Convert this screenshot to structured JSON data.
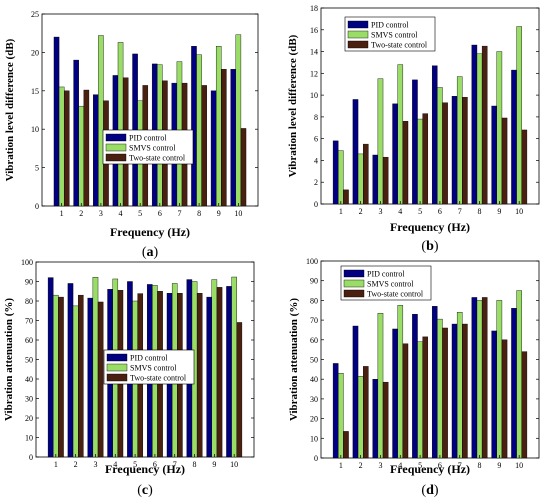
{
  "colors": {
    "pid": "#000080",
    "smvs": "#99dd66",
    "two_state": "#4a2010"
  },
  "chart_data": [
    {
      "type": "bar",
      "panel_label": "(a)",
      "title": "",
      "xlabel": "Frequency (Hz)",
      "ylabel": "Vibration level difference (dB)",
      "ylim": [
        0,
        25
      ],
      "yticks": [
        0,
        5,
        10,
        15,
        20,
        25
      ],
      "categories": [
        "1",
        "2",
        "3",
        "4",
        "5",
        "6",
        "7",
        "8",
        "9",
        "10"
      ],
      "legend_position": "center-left",
      "series": [
        {
          "name": "PID control",
          "values": [
            22,
            19,
            14.5,
            17,
            19.8,
            18.5,
            16,
            20.8,
            15,
            17.8
          ]
        },
        {
          "name": "SMVS control",
          "values": [
            15.5,
            13,
            22.2,
            21.3,
            13.7,
            18.4,
            18.8,
            19.7,
            20.8,
            22.3
          ]
        },
        {
          "name": "Two-state control",
          "values": [
            15,
            15.1,
            13.7,
            16.7,
            15.7,
            16.3,
            16,
            15.7,
            17.8,
            10.1
          ]
        }
      ]
    },
    {
      "type": "bar",
      "panel_label": "(b)",
      "title": "",
      "xlabel": "Frequency (Hz)",
      "ylabel": "Vibration level difference (dB)",
      "ylim": [
        0,
        18
      ],
      "yticks": [
        0,
        2,
        4,
        6,
        8,
        10,
        12,
        14,
        16,
        18
      ],
      "categories": [
        "1",
        "2",
        "3",
        "4",
        "5",
        "6",
        "7",
        "8",
        "9",
        "10"
      ],
      "legend_position": "top-left",
      "series": [
        {
          "name": "PID control",
          "values": [
            5.8,
            9.6,
            4.5,
            9.2,
            11.4,
            12.7,
            9.9,
            14.6,
            9,
            12.3
          ]
        },
        {
          "name": "SMVS control",
          "values": [
            4.9,
            4.6,
            11.5,
            12.8,
            7.8,
            10.7,
            11.7,
            13.8,
            14,
            16.3
          ]
        },
        {
          "name": "Two-state control",
          "values": [
            1.3,
            5.5,
            4.3,
            7.6,
            8.3,
            9.3,
            9.8,
            14.5,
            7.9,
            6.8
          ]
        }
      ]
    },
    {
      "type": "bar",
      "panel_label": "(c)",
      "title": "",
      "xlabel": "Frequency (Hz)",
      "ylabel": "Vibration attenuation (%)",
      "ylim": [
        0,
        100
      ],
      "yticks": [
        0,
        10,
        20,
        30,
        40,
        50,
        60,
        70,
        80,
        90,
        100
      ],
      "categories": [
        "1",
        "2",
        "3",
        "4",
        "5",
        "6",
        "7",
        "8",
        "9",
        "10"
      ],
      "legend_position": "center",
      "series": [
        {
          "name": "PID control",
          "values": [
            92,
            89,
            81.5,
            86,
            90,
            88.5,
            84,
            91,
            82,
            87.5
          ]
        },
        {
          "name": "SMVS control",
          "values": [
            83,
            77.5,
            92.2,
            91.3,
            80,
            88,
            89,
            90,
            91,
            92.3
          ]
        },
        {
          "name": "Two-state control",
          "values": [
            82,
            83,
            79.5,
            85.5,
            83.8,
            85,
            84,
            84,
            87,
            69
          ]
        }
      ]
    },
    {
      "type": "bar",
      "panel_label": "(d)",
      "title": "",
      "xlabel": "Frequency (Hz)",
      "ylabel": "Vibration attenuation (%)",
      "ylim": [
        0,
        100
      ],
      "yticks": [
        0,
        10,
        20,
        30,
        40,
        50,
        60,
        70,
        80,
        90,
        100
      ],
      "categories": [
        "1",
        "2",
        "3",
        "4",
        "5",
        "6",
        "7",
        "8",
        "9",
        "10"
      ],
      "legend_position": "top-left",
      "series": [
        {
          "name": "PID control",
          "values": [
            48,
            67,
            40,
            65.5,
            73,
            77,
            68,
            81.5,
            64.5,
            76
          ]
        },
        {
          "name": "SMVS control",
          "values": [
            43,
            41.5,
            73.5,
            77.5,
            59,
            70.5,
            74,
            80,
            80,
            85
          ]
        },
        {
          "name": "Two-state control",
          "values": [
            13.5,
            46.5,
            38.5,
            58,
            61.5,
            66,
            68,
            81.5,
            60,
            54
          ]
        }
      ]
    }
  ]
}
